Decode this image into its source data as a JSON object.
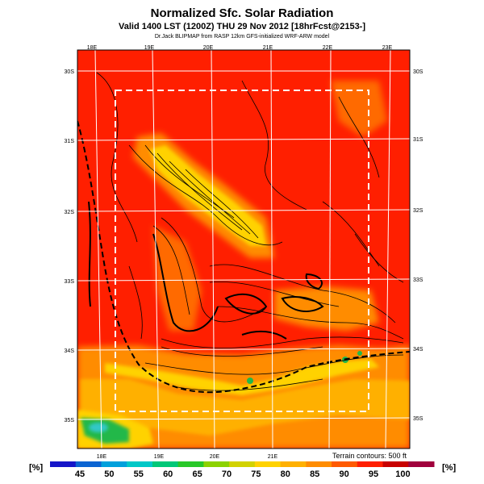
{
  "header": {
    "title": "Normalized Sfc. Solar Radiation",
    "valid_line": "Valid 1400 LST (1200Z) THU 29 Nov 2012 [18hrFcst@2153-]",
    "credit": "Dr.Jack BLIPMAP from RASP 12km GFS-initialized WRF-ARW model"
  },
  "map": {
    "lon_labels_top": [
      "18E",
      "19E",
      "20E",
      "21E",
      "22E",
      "23E"
    ],
    "lon_labels_bottom": [
      "18E",
      "19E",
      "20E",
      "21E"
    ],
    "lat_labels_left": [
      "30S",
      "31S",
      "32S",
      "33S",
      "34S",
      "35S"
    ],
    "lat_labels_right": [
      "30S",
      "31S",
      "32S",
      "33S",
      "34S",
      "35S"
    ],
    "terrain_note": "Terrain contours: 500 ft",
    "colors": {
      "red": "#ff1f00",
      "orange_red": "#ff4a00",
      "orange": "#ff8c00",
      "light_orange": "#ffb000",
      "yellow": "#ffd200",
      "green": "#22b84a",
      "cyan": "#32c8c8",
      "boundary": "#ffffff"
    }
  },
  "colorbar": {
    "unit": "[%]",
    "ticks": [
      "45",
      "50",
      "55",
      "60",
      "65",
      "70",
      "75",
      "80",
      "85",
      "90",
      "95",
      "100"
    ],
    "colors": [
      "#1515c8",
      "#0a64d2",
      "#00a0dc",
      "#00c8c8",
      "#00c878",
      "#28c828",
      "#8cd200",
      "#d2d200",
      "#ffd200",
      "#ffb000",
      "#ff8c00",
      "#ff5a00",
      "#ff1f00",
      "#c80000",
      "#a0003c"
    ]
  }
}
